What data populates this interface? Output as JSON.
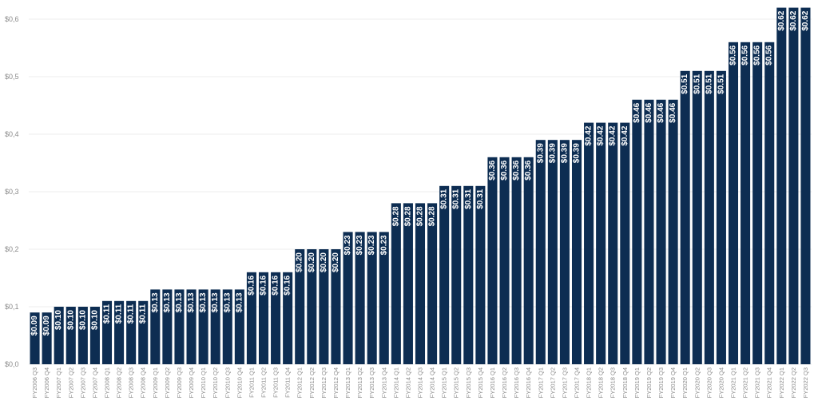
{
  "chart_data": {
    "type": "bar",
    "title": "",
    "xlabel": "",
    "ylabel": "",
    "ylim": [
      0,
      0.6
    ],
    "yticks": [
      0.0,
      0.1,
      0.2,
      0.3,
      0.4,
      0.5,
      0.6
    ],
    "ytick_labels": [
      "$0,0",
      "$0,1",
      "$0,2",
      "$0,3",
      "$0,4",
      "$0,5",
      "$0,6"
    ],
    "grid": true,
    "legend": "none",
    "bar_color": "#0d2d52",
    "categories": [
      "FY2006 Q3",
      "FY2006 Q4",
      "FY2007 Q1",
      "FY2007 Q2",
      "FY2007 Q3",
      "FY2007 Q4",
      "FY2008 Q1",
      "FY2008 Q2",
      "FY2008 Q3",
      "FY2008 Q4",
      "FY2009 Q1",
      "FY2009 Q2",
      "FY2009 Q3",
      "FY2009 Q4",
      "FY2010 Q1",
      "FY2010 Q2",
      "FY2010 Q3",
      "FY2010 Q4",
      "FY2011 Q1",
      "FY2011 Q2",
      "FY2011 Q3",
      "FY2011 Q4",
      "FY2012 Q1",
      "FY2012 Q2",
      "FY2012 Q3",
      "FY2012 Q4",
      "FY2013 Q1",
      "FY2013 Q2",
      "FY2013 Q3",
      "FY2013 Q4",
      "FY2014 Q1",
      "FY2014 Q2",
      "FY2014 Q3",
      "FY2014 Q4",
      "FY2015 Q1",
      "FY2015 Q2",
      "FY2015 Q3",
      "FY2015 Q4",
      "FY2016 Q1",
      "FY2016 Q2",
      "FY2016 Q3",
      "FY2016 Q4",
      "FY2017 Q1",
      "FY2017 Q2",
      "FY2017 Q3",
      "FY2017 Q4",
      "FY2018 Q1",
      "FY2018 Q2",
      "FY2018 Q3",
      "FY2018 Q4",
      "FY2019 Q1",
      "FY2019 Q2",
      "FY2019 Q3",
      "FY2019 Q4",
      "FY2020 Q1",
      "FY2020 Q2",
      "FY2020 Q3",
      "FY2020 Q4",
      "FY2021 Q1",
      "FY2021 Q2",
      "FY2021 Q3",
      "FY2021 Q4",
      "FY2022 Q1",
      "FY2022 Q2",
      "FY2022 Q3"
    ],
    "values": [
      0.09,
      0.09,
      0.1,
      0.1,
      0.1,
      0.1,
      0.11,
      0.11,
      0.11,
      0.11,
      0.13,
      0.13,
      0.13,
      0.13,
      0.13,
      0.13,
      0.13,
      0.13,
      0.16,
      0.16,
      0.16,
      0.16,
      0.2,
      0.2,
      0.2,
      0.2,
      0.23,
      0.23,
      0.23,
      0.23,
      0.28,
      0.28,
      0.28,
      0.28,
      0.31,
      0.31,
      0.31,
      0.31,
      0.36,
      0.36,
      0.36,
      0.36,
      0.39,
      0.39,
      0.39,
      0.39,
      0.42,
      0.42,
      0.42,
      0.42,
      0.46,
      0.46,
      0.46,
      0.46,
      0.51,
      0.51,
      0.51,
      0.51,
      0.56,
      0.56,
      0.56,
      0.56,
      0.62,
      0.62,
      0.62
    ],
    "data_labels": [
      "$0.09",
      "$0.09",
      "$0.10",
      "$0.10",
      "$0.10",
      "$0.10",
      "$0.11",
      "$0.11",
      "$0.11",
      "$0.11",
      "$0.13",
      "$0.13",
      "$0.13",
      "$0.13",
      "$0.13",
      "$0.13",
      "$0.13",
      "$0.13",
      "$0.16",
      "$0.16",
      "$0.16",
      "$0.16",
      "$0.20",
      "$0.20",
      "$0.20",
      "$0.20",
      "$0.23",
      "$0.23",
      "$0.23",
      "$0.23",
      "$0.28",
      "$0.28",
      "$0.28",
      "$0.28",
      "$0.31",
      "$0.31",
      "$0.31",
      "$0.31",
      "$0.36",
      "$0.36",
      "$0.36",
      "$0.36",
      "$0.39",
      "$0.39",
      "$0.39",
      "$0.39",
      "$0.42",
      "$0.42",
      "$0.42",
      "$0.42",
      "$0.46",
      "$0.46",
      "$0.46",
      "$0.46",
      "$0.51",
      "$0.51",
      "$0.51",
      "$0.51",
      "$0.56",
      "$0.56",
      "$0.56",
      "$0.56",
      "$0.62",
      "$0.62",
      "$0.62"
    ]
  }
}
